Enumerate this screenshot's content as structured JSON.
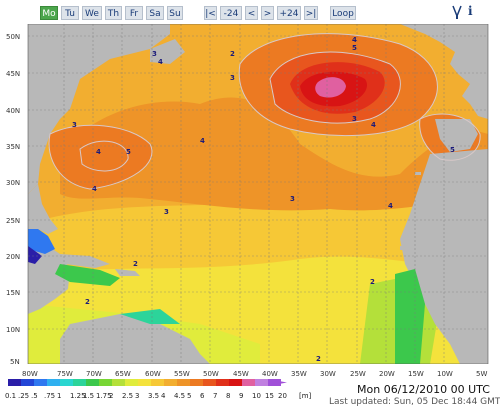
{
  "toolbar": {
    "days": [
      "Mo",
      "Tu",
      "We",
      "Th",
      "Fr",
      "Sa",
      "Su"
    ],
    "active_day": "Mo",
    "nav": [
      "|<",
      "-24",
      "<",
      ">",
      "+24",
      ">|"
    ],
    "loop_label": "Loop",
    "info_label": "i"
  },
  "map": {
    "lat_labels": [
      "50N",
      "45N",
      "40N",
      "35N",
      "30N",
      "25N",
      "20N",
      "15N",
      "10N",
      "5N"
    ],
    "lon_labels": [
      "80W",
      "75W",
      "70W",
      "65W",
      "60W",
      "55W",
      "50W",
      "45W",
      "40W",
      "35W",
      "30W",
      "25W",
      "20W",
      "15W",
      "10W",
      "5W"
    ],
    "contour_labels": [
      "2",
      "3",
      "4",
      "5"
    ]
  },
  "legend": {
    "values": [
      "0.1",
      ".25",
      ".5",
      ".75",
      "1",
      "1.25",
      "1.5",
      "1.75",
      "2",
      "2.5",
      "3",
      "3.5",
      "4",
      "4.5",
      "5",
      "6",
      "7",
      "8",
      "9",
      "10",
      "15",
      "20"
    ],
    "colors": [
      "#2a1ea8",
      "#2346d6",
      "#2f78f0",
      "#2fb0f0",
      "#2ad6d0",
      "#2cd49a",
      "#3cc84c",
      "#78d634",
      "#b4e03a",
      "#e0ec3c",
      "#f4e23c",
      "#f6c836",
      "#f2ae30",
      "#ee9428",
      "#ec7a22",
      "#e8561e",
      "#e0301a",
      "#d81414",
      "#e060a0",
      "#c080e0",
      "#a050d8"
    ],
    "unit": "[m]"
  },
  "footer": {
    "datetime": "Mon 06/12/2010 00 UTC",
    "updated": "Last updated: Sun, 05 Dec 18:44 GMT"
  }
}
